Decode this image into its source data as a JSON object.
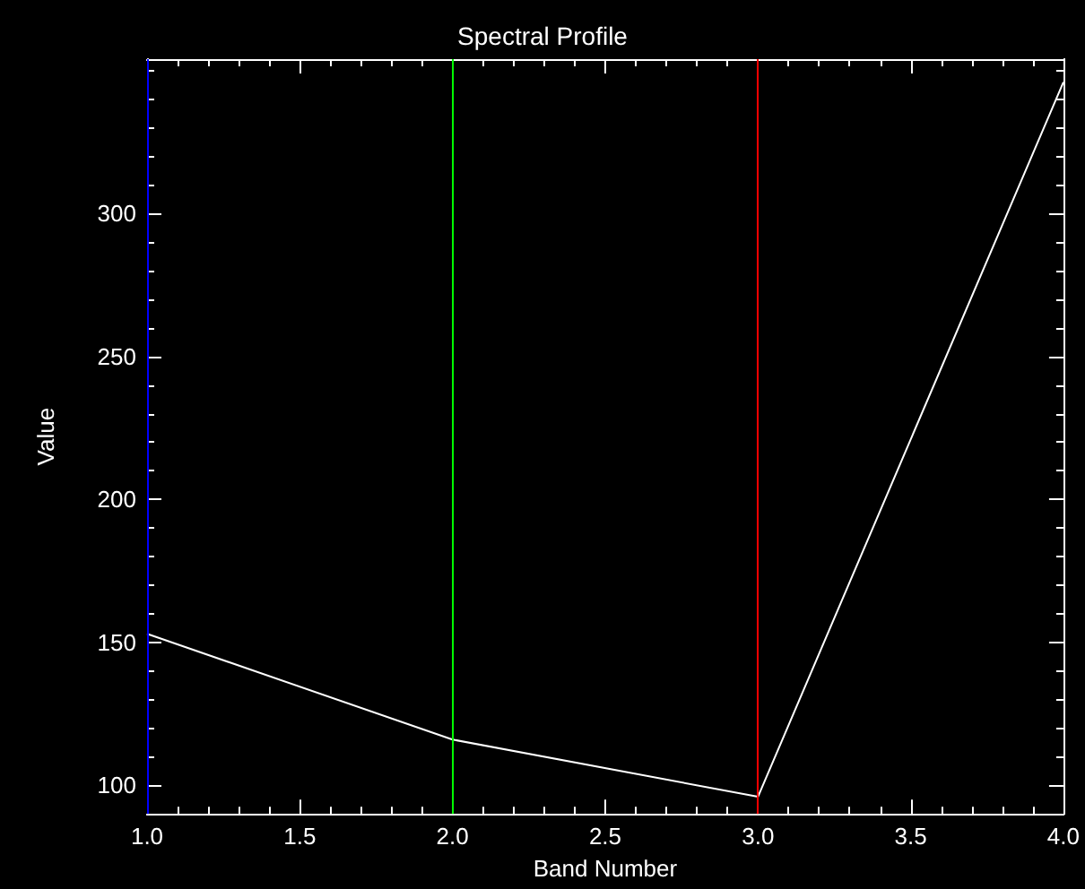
{
  "chart_data": {
    "type": "line",
    "title": "Spectral Profile",
    "xlabel": "Band Number",
    "ylabel": "Value",
    "x": [
      1,
      2,
      3,
      4
    ],
    "series": [
      {
        "color": "#ffffff",
        "values": [
          153,
          116,
          96,
          346
        ]
      }
    ],
    "xlim": [
      1,
      4
    ],
    "xticks": [
      {
        "value": 1,
        "label": "1.0"
      },
      {
        "value": 1.1,
        "label": null
      },
      {
        "value": 1.2,
        "label": null
      },
      {
        "value": 1.3,
        "label": null
      },
      {
        "value": 1.4,
        "label": null
      },
      {
        "value": 1.5,
        "label": "1.5"
      },
      {
        "value": 1.6,
        "label": null
      },
      {
        "value": 1.7,
        "label": null
      },
      {
        "value": 1.8,
        "label": null
      },
      {
        "value": 1.9,
        "label": null
      },
      {
        "value": 2,
        "label": "2.0"
      },
      {
        "value": 2.1,
        "label": null
      },
      {
        "value": 2.2,
        "label": null
      },
      {
        "value": 2.3,
        "label": null
      },
      {
        "value": 2.4,
        "label": null
      },
      {
        "value": 2.5,
        "label": "2.5"
      },
      {
        "value": 2.6,
        "label": null
      },
      {
        "value": 2.7,
        "label": null
      },
      {
        "value": 2.8,
        "label": null
      },
      {
        "value": 2.9,
        "label": null
      },
      {
        "value": 3,
        "label": "3.0"
      },
      {
        "value": 3.1,
        "label": null
      },
      {
        "value": 3.2,
        "label": null
      },
      {
        "value": 3.3,
        "label": null
      },
      {
        "value": 3.4,
        "label": null
      },
      {
        "value": 3.5,
        "label": "3.5"
      },
      {
        "value": 3.6,
        "label": null
      },
      {
        "value": 3.7,
        "label": null
      },
      {
        "value": 3.8,
        "label": null
      },
      {
        "value": 3.9,
        "label": null
      },
      {
        "value": 4,
        "label": "4.0"
      }
    ],
    "ylim": [
      90,
      354
    ],
    "yticks": [
      100,
      {
        "value": 110,
        "label": null
      },
      {
        "value": 120,
        "label": null
      },
      {
        "value": 130,
        "label": null
      },
      {
        "value": 140,
        "label": null
      },
      150,
      {
        "value": 160,
        "label": null
      },
      {
        "value": 170,
        "label": null
      },
      {
        "value": 180,
        "label": null
      },
      {
        "value": 190,
        "label": null
      },
      200,
      {
        "value": 210,
        "label": null
      },
      {
        "value": 220,
        "label": null
      },
      {
        "value": 230,
        "label": null
      },
      {
        "value": 240,
        "label": null
      },
      250,
      {
        "value": 260,
        "label": null
      },
      {
        "value": 270,
        "label": null
      },
      {
        "value": 280,
        "label": null
      },
      {
        "value": 290,
        "label": null
      },
      300,
      {
        "value": 310,
        "label": null
      },
      {
        "value": 320,
        "label": null
      },
      {
        "value": 330,
        "label": null
      },
      {
        "value": 340,
        "label": null
      },
      {
        "value": 350,
        "label": null
      }
    ],
    "ref_lines": [
      {
        "axis": "x",
        "value": 1,
        "color": "#0000ff"
      },
      {
        "axis": "x",
        "value": 2,
        "color": "#00ff00"
      },
      {
        "axis": "x",
        "value": 3,
        "color": "#ff0000"
      }
    ],
    "marker": "none",
    "line_style": "solid"
  }
}
